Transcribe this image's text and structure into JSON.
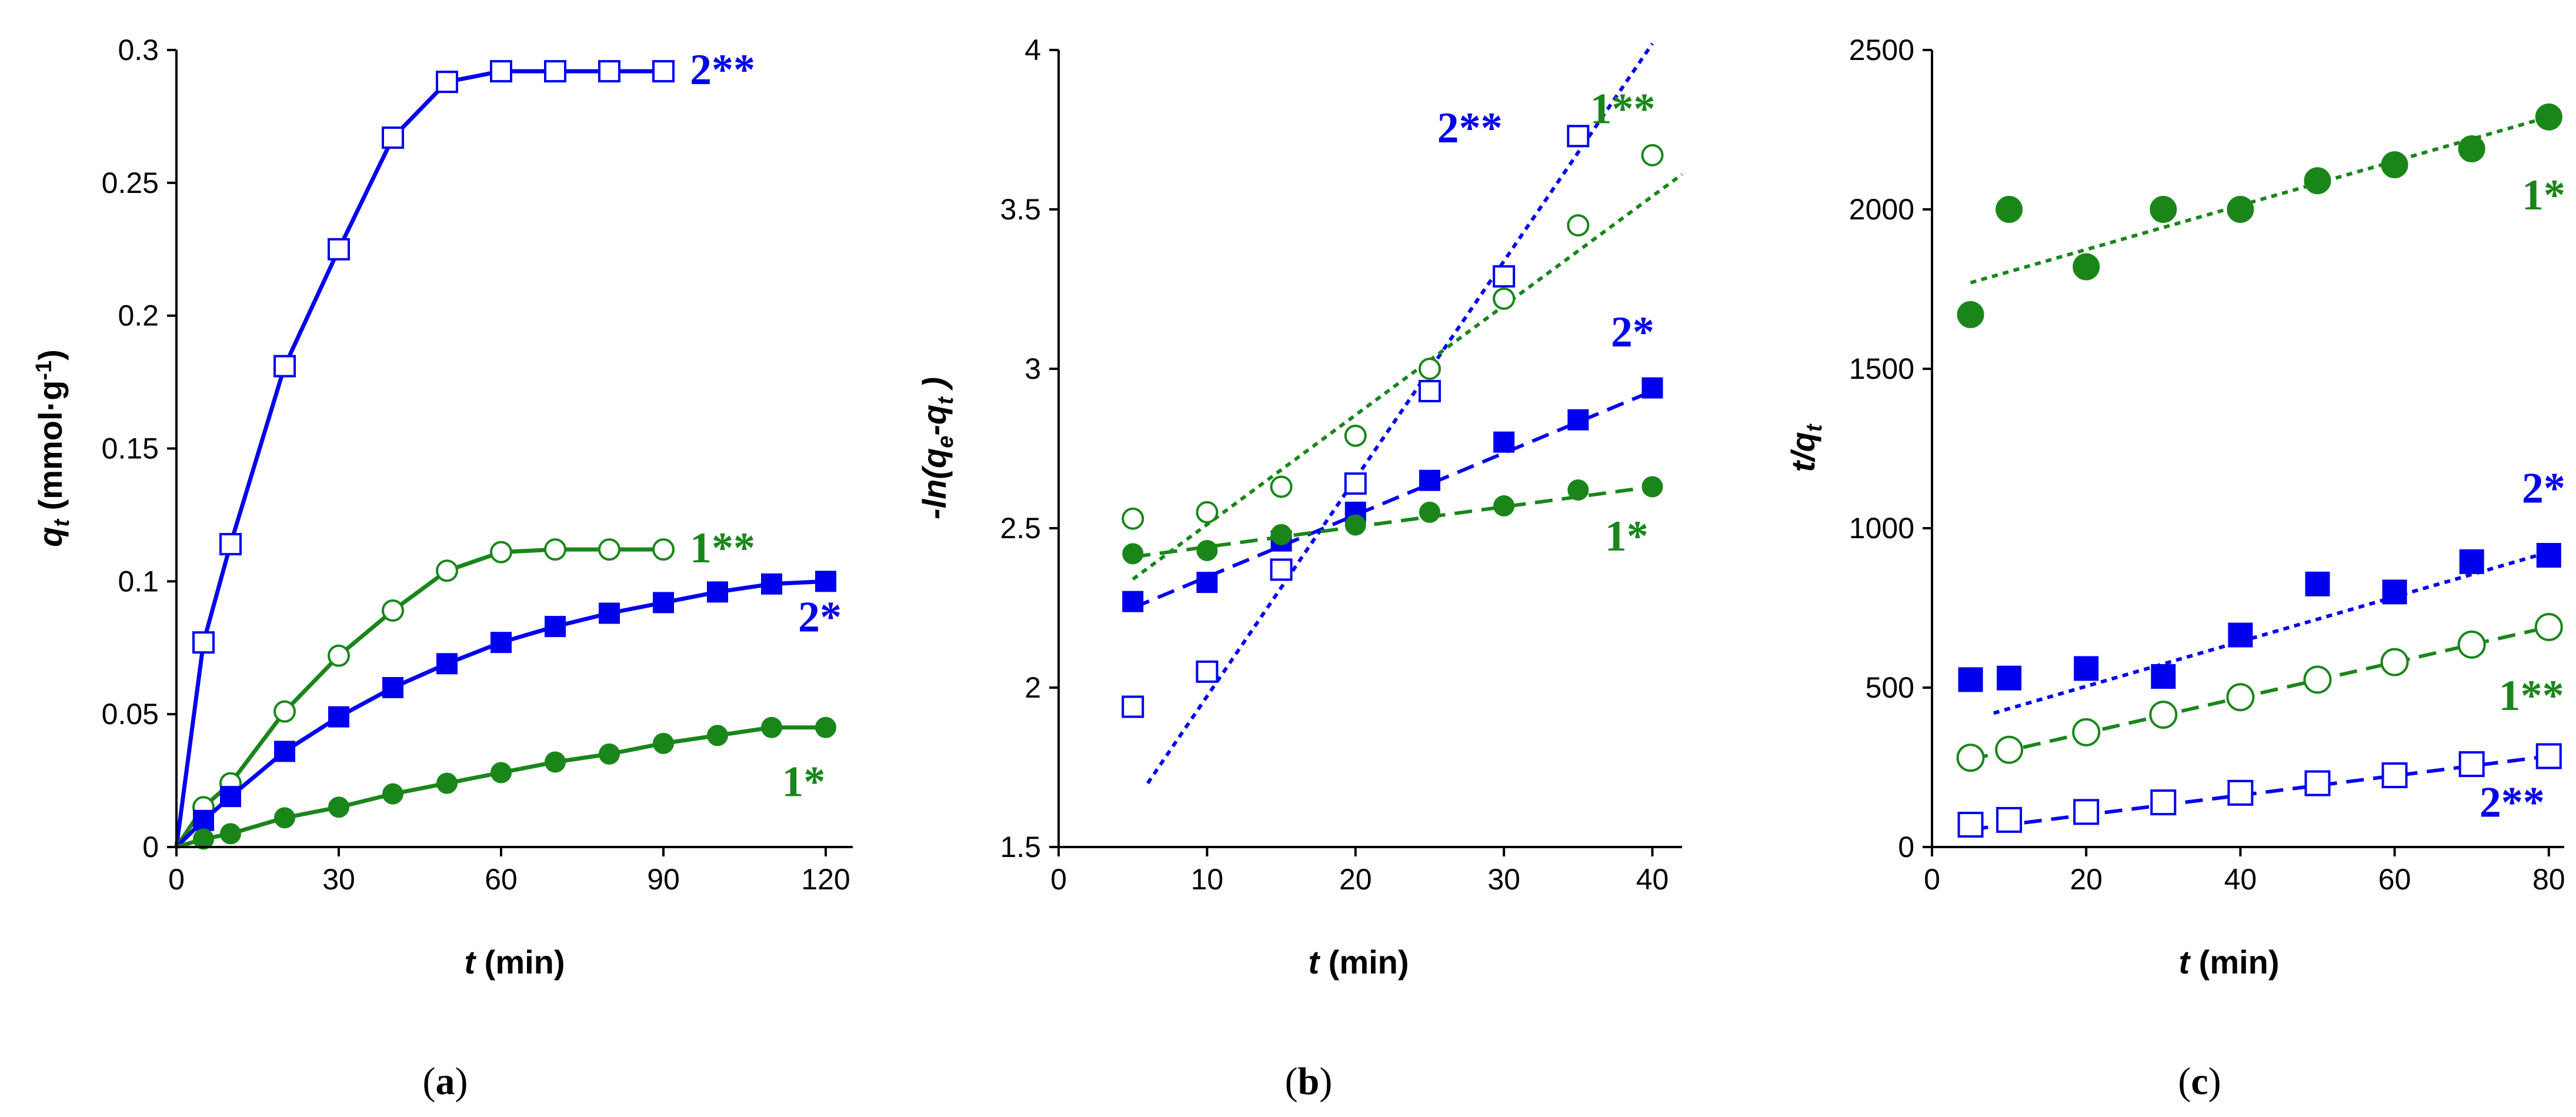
{
  "colors": {
    "blue": "#0000ee",
    "green": "#1a861a",
    "black": "#000000"
  },
  "chart_data": [
    {
      "type": "line",
      "panel_label": "a",
      "xlabel": {
        "var": "t",
        "unit": " (min)"
      },
      "ylabel": {
        "var": "q",
        "sub": "t",
        "unit": " (mmol·g",
        "sup": "-1",
        "close": ")"
      },
      "xlim": [
        0,
        125
      ],
      "ylim": [
        0,
        0.3
      ],
      "xticks": [
        0,
        30,
        60,
        90,
        120
      ],
      "yticks": [
        0,
        0.05,
        0.1,
        0.15,
        0.2,
        0.25,
        0.3
      ],
      "ytick_labels": [
        "0",
        "0.05",
        "0.1",
        "0.15",
        "0.2",
        "0.25",
        "0.3"
      ],
      "series": [
        {
          "name": "2**",
          "color": "blue",
          "marker": "square-open",
          "line": "solid",
          "x": [
            0,
            5,
            10,
            20,
            30,
            40,
            50,
            60,
            70,
            80,
            90
          ],
          "y": [
            0,
            0.077,
            0.114,
            0.181,
            0.225,
            0.267,
            0.288,
            0.292,
            0.292,
            0.292,
            0.292
          ]
        },
        {
          "name": "1**",
          "color": "green",
          "marker": "circle-open",
          "line": "solid",
          "x": [
            0,
            5,
            10,
            20,
            30,
            40,
            50,
            60,
            70,
            80,
            90
          ],
          "y": [
            0,
            0.015,
            0.024,
            0.051,
            0.072,
            0.089,
            0.104,
            0.111,
            0.112,
            0.112,
            0.112
          ]
        },
        {
          "name": "2*",
          "color": "blue",
          "marker": "square-filled",
          "line": "solid",
          "x": [
            0,
            5,
            10,
            20,
            30,
            40,
            50,
            60,
            70,
            80,
            90,
            100,
            110,
            120
          ],
          "y": [
            0,
            0.01,
            0.019,
            0.036,
            0.049,
            0.06,
            0.069,
            0.077,
            0.083,
            0.088,
            0.092,
            0.096,
            0.099,
            0.1
          ]
        },
        {
          "name": "1*",
          "color": "green",
          "marker": "circle-filled",
          "line": "solid",
          "x": [
            0,
            5,
            10,
            20,
            30,
            40,
            50,
            60,
            70,
            80,
            90,
            100,
            110,
            120
          ],
          "y": [
            0,
            0.003,
            0.005,
            0.011,
            0.015,
            0.02,
            0.024,
            0.028,
            0.032,
            0.035,
            0.039,
            0.042,
            0.045,
            0.045
          ]
        }
      ],
      "annotations": [
        {
          "text": "2**",
          "color": "blue",
          "at": [
            90,
            0.292
          ]
        },
        {
          "text": "1**",
          "color": "green",
          "at": [
            90,
            0.112
          ]
        },
        {
          "text": "2*",
          "color": "blue",
          "at": [
            110,
            0.086
          ]
        },
        {
          "text": "1*",
          "color": "green",
          "at": [
            107,
            0.024
          ]
        }
      ]
    },
    {
      "type": "scatter",
      "panel_label": "b",
      "xlabel": {
        "var": "t",
        "unit": " (min)"
      },
      "ylabel": {
        "pre": "-ln(q",
        "sub1": "e",
        "mid": "-q",
        "sub2": "t",
        "close": " )"
      },
      "xlim": [
        0,
        42
      ],
      "ylim": [
        1.5,
        4
      ],
      "xticks": [
        0,
        10,
        20,
        30,
        40
      ],
      "yticks": [
        1.5,
        2,
        2.5,
        3,
        3.5,
        4
      ],
      "ytick_labels": [
        "1.5",
        "2",
        "2.5",
        "3",
        "3.5",
        "4"
      ],
      "series": [
        {
          "name": "2**",
          "color": "blue",
          "marker": "square-open",
          "fit": "dotted",
          "x": [
            5,
            10,
            15,
            20,
            25,
            30,
            35
          ],
          "y": [
            1.94,
            2.05,
            2.37,
            2.64,
            2.93,
            3.29,
            3.73
          ],
          "fit_line": {
            "x": [
              6,
              40
            ],
            "y": [
              1.7,
              4.02
            ]
          }
        },
        {
          "name": "1**",
          "color": "green",
          "marker": "circle-open",
          "fit": "dotted",
          "x": [
            5,
            10,
            15,
            20,
            25,
            30,
            35,
            40
          ],
          "y": [
            2.53,
            2.55,
            2.63,
            2.79,
            3.0,
            3.22,
            3.45,
            3.67
          ],
          "fit_line": {
            "x": [
              5,
              42
            ],
            "y": [
              2.34,
              3.61
            ]
          }
        },
        {
          "name": "2*",
          "color": "blue",
          "marker": "square-filled",
          "fit": "dashed",
          "x": [
            5,
            10,
            15,
            20,
            25,
            30,
            35,
            40
          ],
          "y": [
            2.27,
            2.33,
            2.46,
            2.55,
            2.65,
            2.77,
            2.84,
            2.94
          ],
          "fit_line": {
            "x": [
              5,
              40
            ],
            "y": [
              2.25,
              2.93
            ]
          }
        },
        {
          "name": "1*",
          "color": "green",
          "marker": "circle-filled",
          "fit": "dashed",
          "x": [
            5,
            10,
            15,
            20,
            25,
            30,
            35,
            40
          ],
          "y": [
            2.42,
            2.43,
            2.48,
            2.51,
            2.55,
            2.57,
            2.62,
            2.63
          ],
          "fit_line": {
            "x": [
              5,
              40
            ],
            "y": [
              2.41,
              2.63
            ]
          }
        }
      ],
      "annotations": [
        {
          "text": "2**",
          "color": "blue",
          "at": [
            25.5,
            3.71
          ]
        },
        {
          "text": "1**",
          "color": "green",
          "at": [
            35.8,
            3.77
          ]
        },
        {
          "text": "2*",
          "color": "blue",
          "at": [
            37.2,
            3.07
          ]
        },
        {
          "text": "1*",
          "color": "green",
          "at": [
            36.8,
            2.43
          ]
        }
      ]
    },
    {
      "type": "scatter",
      "panel_label": "c",
      "xlabel": {
        "var": "t",
        "unit": " (min)"
      },
      "ylabel": {
        "pre": "t/q",
        "sub": "t"
      },
      "xlim": [
        0,
        82
      ],
      "ylim": [
        0,
        2500
      ],
      "xticks": [
        0,
        20,
        40,
        60,
        80
      ],
      "yticks": [
        0,
        500,
        1000,
        1500,
        2000,
        2500
      ],
      "ytick_labels": [
        "0",
        "500",
        "1000",
        "1500",
        "2000",
        "2500"
      ],
      "series": [
        {
          "name": "1*",
          "color": "green",
          "marker": "circle-filled",
          "fit": "dotted",
          "x": [
            5,
            10,
            20,
            30,
            40,
            50,
            60,
            70,
            80
          ],
          "y": [
            1670,
            2000,
            1820,
            2000,
            2000,
            2090,
            2140,
            2190,
            2290
          ],
          "fit_line": {
            "x": [
              5,
              80
            ],
            "y": [
              1770,
              2290
            ]
          }
        },
        {
          "name": "2*",
          "color": "blue",
          "marker": "square-filled",
          "fit": "dotted",
          "x": [
            5,
            10,
            20,
            30,
            40,
            50,
            60,
            70,
            80
          ],
          "y": [
            525,
            530,
            560,
            535,
            665,
            825,
            800,
            895,
            915
          ],
          "fit_line": {
            "x": [
              8,
              80
            ],
            "y": [
              420,
              925
            ]
          }
        },
        {
          "name": "1**",
          "color": "green",
          "marker": "circle-open",
          "fit": "dashed",
          "x": [
            5,
            10,
            20,
            30,
            40,
            50,
            60,
            70,
            80
          ],
          "y": [
            280,
            305,
            360,
            415,
            470,
            525,
            580,
            635,
            690
          ],
          "fit_line": {
            "x": [
              5,
              80
            ],
            "y": [
              275,
              690
            ]
          }
        },
        {
          "name": "2**",
          "color": "blue",
          "marker": "square-open",
          "fit": "dashed",
          "x": [
            5,
            10,
            20,
            30,
            40,
            50,
            60,
            70,
            80
          ],
          "y": [
            70,
            85,
            110,
            140,
            170,
            200,
            225,
            260,
            285
          ],
          "fit_line": {
            "x": [
              5,
              80
            ],
            "y": [
              55,
              285
            ]
          }
        }
      ],
      "annotations": [
        {
          "text": "1*",
          "color": "green",
          "at": [
            76.5,
            2000
          ]
        },
        {
          "text": "2*",
          "color": "blue",
          "at": [
            76.5,
            1080
          ]
        },
        {
          "text": "1**",
          "color": "green",
          "at": [
            73.5,
            430
          ]
        },
        {
          "text": "2**",
          "color": "blue",
          "at": [
            71,
            95
          ]
        }
      ]
    }
  ]
}
